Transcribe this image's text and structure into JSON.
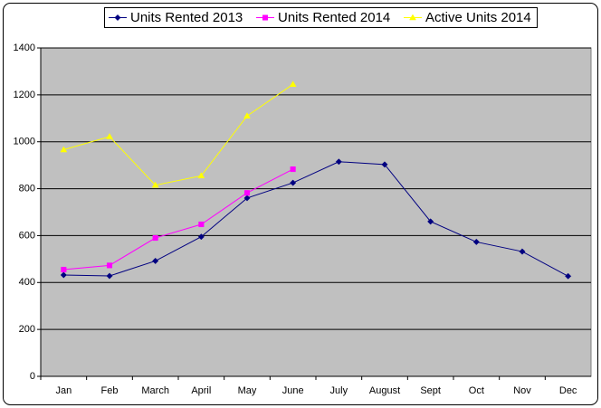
{
  "chart_data": {
    "type": "line",
    "categories": [
      "Jan",
      "Feb",
      "March",
      "April",
      "May",
      "June",
      "July",
      "August",
      "Sept",
      "Oct",
      "Nov",
      "Dec"
    ],
    "series": [
      {
        "name": "Units Rented 2013",
        "color": "#000080",
        "marker": "diamond",
        "values": [
          432,
          428,
          492,
          595,
          760,
          825,
          915,
          903,
          660,
          573,
          532,
          427
        ]
      },
      {
        "name": "Units Rented 2014",
        "color": "#ff00ff",
        "marker": "square",
        "values": [
          455,
          473,
          590,
          648,
          782,
          883,
          null,
          null,
          null,
          null,
          null,
          null
        ]
      },
      {
        "name": "Active Units 2014",
        "color": "#ffff00",
        "marker": "triangle",
        "values": [
          966,
          1022,
          815,
          855,
          1110,
          1245,
          null,
          null,
          null,
          null,
          null,
          null
        ]
      }
    ],
    "ylim": [
      0,
      1400
    ],
    "yticks": [
      0,
      200,
      400,
      600,
      800,
      1000,
      1200,
      1400
    ],
    "grid": true,
    "legend": "top"
  }
}
